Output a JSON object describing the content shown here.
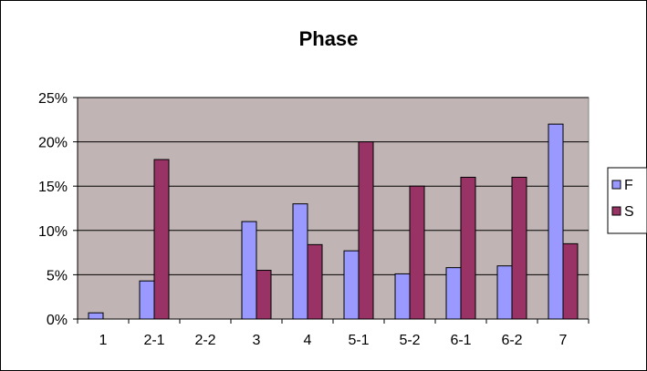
{
  "chart_data": {
    "type": "bar",
    "title": "Phase",
    "xlabel": "",
    "ylabel": "",
    "categories": [
      "1",
      "2-1",
      "2-2",
      "3",
      "4",
      "5-1",
      "5-2",
      "6-1",
      "6-2",
      "7"
    ],
    "series": [
      {
        "name": "F",
        "values": [
          0.007,
          0.043,
          0.0,
          0.11,
          0.13,
          0.077,
          0.051,
          0.058,
          0.06,
          0.22
        ],
        "color": "#9999ff"
      },
      {
        "name": "S",
        "values": [
          0.0,
          0.18,
          0.0,
          0.055,
          0.084,
          0.2,
          0.15,
          0.16,
          0.16,
          0.085
        ],
        "color": "#993366"
      }
    ],
    "ylim": [
      0,
      0.25
    ],
    "yticks": [
      "0%",
      "5%",
      "10%",
      "15%",
      "20%",
      "25%"
    ],
    "grid": true,
    "legend_position": "right",
    "plot_background": "#c0b4b4"
  }
}
